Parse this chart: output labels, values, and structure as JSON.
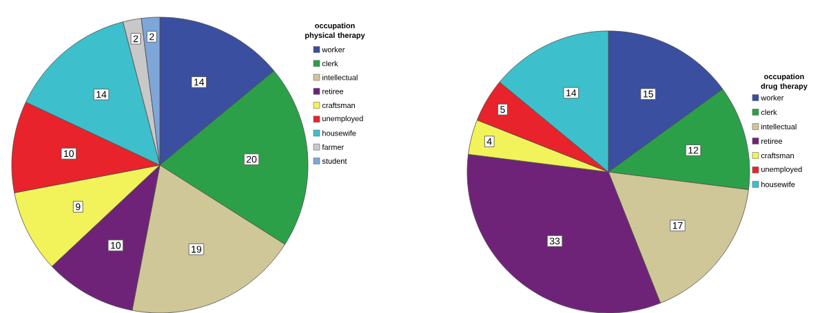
{
  "chart_data": [
    {
      "type": "pie",
      "legend_title": "occupation physical therapy",
      "legend": "right",
      "data_labels": true,
      "categories": [
        "worker",
        "clerk",
        "intellectual",
        "retiree",
        "craftsman",
        "unemployed",
        "housewife",
        "farmer",
        "student"
      ],
      "values": [
        14,
        20,
        19,
        10,
        9,
        10,
        14,
        2,
        2
      ],
      "colors": [
        "#3a4fa0",
        "#2ca048",
        "#cfc797",
        "#6e2378",
        "#f2f25a",
        "#e8232b",
        "#3ebfcc",
        "#c8c8c8",
        "#7ea6d8"
      ]
    },
    {
      "type": "pie",
      "legend_title": "occupation drug therapy",
      "legend": "right",
      "data_labels": true,
      "categories": [
        "worker",
        "clerk",
        "intellectual",
        "retiree",
        "craftsman",
        "unemployed",
        "housewife"
      ],
      "values": [
        15,
        12,
        17,
        33,
        4,
        5,
        14
      ],
      "colors": [
        "#3a4fa0",
        "#2ca048",
        "#cfc797",
        "#6e2378",
        "#f2f25a",
        "#e8232b",
        "#3ebfcc"
      ]
    }
  ]
}
